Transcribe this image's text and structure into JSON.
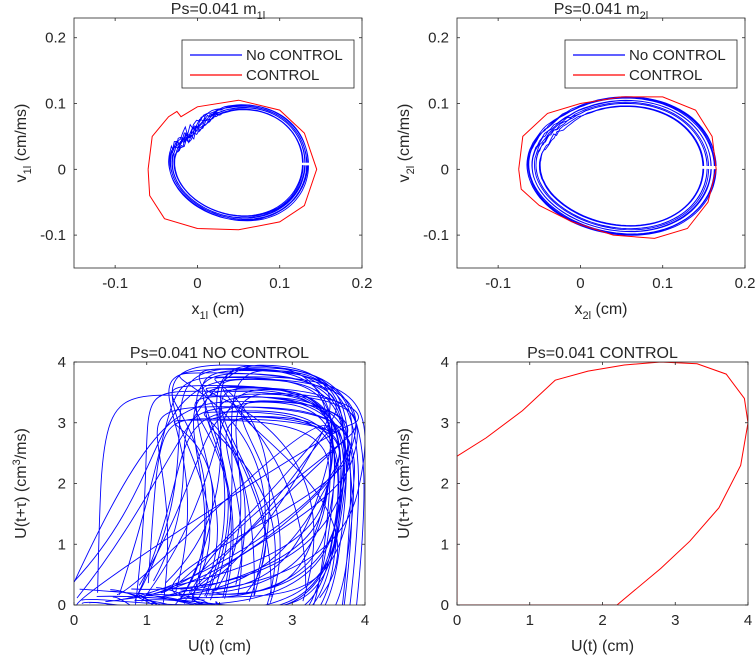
{
  "chart_data": [
    {
      "type": "line",
      "title": "Ps=0.041     m",
      "title_sub": "1l",
      "xlabel": "x",
      "xlabel_sub": "1l",
      "xlabel_unit": " (cm)",
      "ylabel": "v",
      "ylabel_sub": "1l",
      "ylabel_unit": " (cm/ms)",
      "xlim": [
        -0.15,
        0.2
      ],
      "ylim": [
        -0.15,
        0.23
      ],
      "xticks": [
        -0.1,
        0,
        0.1,
        0.2
      ],
      "yticks": [
        -0.1,
        0,
        0.1,
        0.2
      ],
      "xtick_labels": [
        "-0.1",
        "0",
        "0.1",
        "0.2"
      ],
      "ytick_labels": [
        "-0.1",
        "0",
        "0.1",
        "0.2"
      ],
      "legend": {
        "position": "top-right",
        "entries": [
          "No CONTROL",
          "CONTROL"
        ]
      },
      "series": [
        {
          "name": "No CONTROL",
          "color": "#0000ff",
          "kind": "phase-orbit",
          "cx": 0.05,
          "cy": 0.01,
          "rx": 0.085,
          "ry": 0.088,
          "bump": [
            -0.02,
            0.07
          ],
          "loops": 9,
          "spread": 0.06
        },
        {
          "name": "CONTROL",
          "color": "#ff0000",
          "kind": "phase-curve",
          "points": [
            [
              -0.06,
              0
            ],
            [
              -0.055,
              0.05
            ],
            [
              -0.035,
              0.08
            ],
            [
              -0.025,
              0.088
            ],
            [
              -0.02,
              0.08
            ],
            [
              0.0,
              0.095
            ],
            [
              0.05,
              0.105
            ],
            [
              0.1,
              0.09
            ],
            [
              0.13,
              0.055
            ],
            [
              0.145,
              0.0
            ],
            [
              0.13,
              -0.055
            ],
            [
              0.1,
              -0.08
            ],
            [
              0.05,
              -0.092
            ],
            [
              0.0,
              -0.09
            ],
            [
              -0.04,
              -0.075
            ],
            [
              -0.058,
              -0.04
            ],
            [
              -0.06,
              0
            ]
          ]
        }
      ]
    },
    {
      "type": "line",
      "title": "Ps=0.041     m",
      "title_sub": "2l",
      "xlabel": "x",
      "xlabel_sub": "2l",
      "xlabel_unit": " (cm)",
      "ylabel": "v",
      "ylabel_sub": "2l",
      "ylabel_unit": " (cm/ms)",
      "xlim": [
        -0.15,
        0.2
      ],
      "ylim": [
        -0.15,
        0.23
      ],
      "xticks": [
        -0.1,
        0,
        0.1,
        0.2
      ],
      "yticks": [
        -0.1,
        0,
        0.1,
        0.2
      ],
      "xtick_labels": [
        "-0.1",
        "0",
        "0.1",
        "0.2"
      ],
      "ytick_labels": [
        "-0.1",
        "0",
        "0.1",
        "0.2"
      ],
      "legend": {
        "position": "top-right",
        "entries": [
          "No CONTROL",
          "CONTROL"
        ]
      },
      "series": [
        {
          "name": "No CONTROL",
          "color": "#0000ff",
          "kind": "phase-orbit",
          "cx": 0.05,
          "cy": 0.005,
          "rx": 0.115,
          "ry": 0.105,
          "bump": [
            -0.005,
            0.03
          ],
          "loops": 11,
          "spread": 0.09
        },
        {
          "name": "CONTROL",
          "color": "#ff0000",
          "kind": "phase-curve",
          "points": [
            [
              -0.075,
              0
            ],
            [
              -0.07,
              0.05
            ],
            [
              -0.04,
              0.085
            ],
            [
              0.0,
              0.1
            ],
            [
              0.05,
              0.11
            ],
            [
              0.1,
              0.11
            ],
            [
              0.14,
              0.09
            ],
            [
              0.16,
              0.05
            ],
            [
              0.165,
              0.0
            ],
            [
              0.155,
              -0.05
            ],
            [
              0.13,
              -0.09
            ],
            [
              0.09,
              -0.105
            ],
            [
              0.04,
              -0.1
            ],
            [
              -0.01,
              -0.08
            ],
            [
              -0.05,
              -0.055
            ],
            [
              -0.072,
              -0.03
            ],
            [
              -0.075,
              0
            ]
          ]
        }
      ]
    },
    {
      "type": "line",
      "title": "Ps=0.041      NO CONTROL",
      "xlabel": "U(t) (cm)",
      "ylabel": "U(t+τ) (cm",
      "ylabel_sup": "3",
      "ylabel_tail": "/ms)",
      "xlim": [
        0,
        4
      ],
      "ylim": [
        0,
        4
      ],
      "xticks": [
        0,
        1,
        2,
        3,
        4
      ],
      "yticks": [
        0,
        1,
        2,
        3,
        4
      ],
      "xtick_labels": [
        "0",
        "1",
        "2",
        "3",
        "4"
      ],
      "ytick_labels": [
        "0",
        "1",
        "2",
        "3",
        "4"
      ],
      "series": [
        {
          "name": "",
          "color": "#0000ff",
          "kind": "chaotic-attractor",
          "loops": 38
        }
      ]
    },
    {
      "type": "line",
      "title": "Ps=0.041      CONTROL",
      "xlabel": "U(t) (cm)",
      "ylabel": "U(t+τ) (cm",
      "ylabel_sup": "3",
      "ylabel_tail": "/ms)",
      "xlim": [
        0,
        4
      ],
      "ylim": [
        0,
        4
      ],
      "xticks": [
        0,
        1,
        2,
        3,
        4
      ],
      "yticks": [
        0,
        1,
        2,
        3,
        4
      ],
      "xtick_labels": [
        "0",
        "1",
        "2",
        "3",
        "4"
      ],
      "ytick_labels": [
        "0",
        "1",
        "2",
        "3",
        "4"
      ],
      "series": [
        {
          "name": "",
          "color": "#ff0000",
          "kind": "phase-curve",
          "points": [
            [
              0,
              2.45
            ],
            [
              0.4,
              2.75
            ],
            [
              0.9,
              3.2
            ],
            [
              1.35,
              3.7
            ],
            [
              1.8,
              3.85
            ],
            [
              2.3,
              3.95
            ],
            [
              2.8,
              4.0
            ],
            [
              3.3,
              3.97
            ],
            [
              3.7,
              3.8
            ],
            [
              3.95,
              3.4
            ],
            [
              4.0,
              3.0
            ],
            [
              3.9,
              2.3
            ],
            [
              3.6,
              1.6
            ],
            [
              3.2,
              1.05
            ],
            [
              2.8,
              0.6
            ],
            [
              2.45,
              0.25
            ],
            [
              2.2,
              0.0
            ],
            [
              0,
              0
            ],
            [
              0,
              2.45
            ]
          ]
        }
      ]
    }
  ]
}
